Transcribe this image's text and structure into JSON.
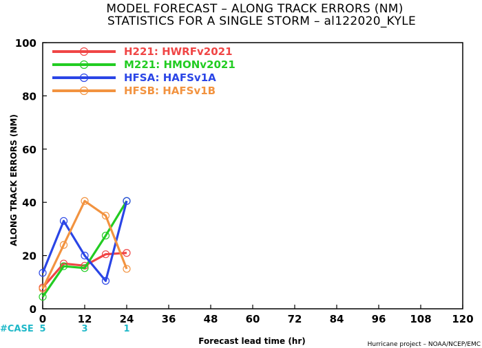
{
  "chart_data": {
    "type": "line",
    "title": "MODEL FORECAST – ALONG TRACK ERRORS (NM)",
    "subtitle": "STATISTICS FOR A SINGLE STORM – al122020_KYLE",
    "xlabel": "Forecast lead time (hr)",
    "ylabel": "ALONG TRACK ERRORS (NM)",
    "xlim": [
      0,
      120
    ],
    "ylim": [
      0,
      100
    ],
    "x_ticks": [
      0,
      12,
      24,
      36,
      48,
      60,
      72,
      84,
      96,
      108,
      120
    ],
    "y_ticks": [
      0,
      20,
      40,
      60,
      80,
      100
    ],
    "grid": false,
    "legend_position": "top-left",
    "series": [
      {
        "name": "H221: HWRFv2021",
        "color": "#f04545",
        "x": [
          0,
          6,
          12,
          18,
          24
        ],
        "y": [
          8,
          17,
          16.2,
          20.5,
          21
        ]
      },
      {
        "name": "M221: HMONv2021",
        "color": "#22cc22",
        "x": [
          0,
          6,
          12,
          18,
          24
        ],
        "y": [
          4.5,
          16,
          15.3,
          27.5,
          40.5
        ]
      },
      {
        "name": "HFSA: HAFSv1A",
        "color": "#2a45e6",
        "x": [
          0,
          6,
          12,
          18,
          24
        ],
        "y": [
          13.5,
          33,
          20,
          10.5,
          40.5
        ]
      },
      {
        "name": "HFSB: HAFSv1B",
        "color": "#f29340",
        "x": [
          0,
          6,
          12,
          18,
          24
        ],
        "y": [
          7.5,
          24,
          40.5,
          35,
          15
        ]
      }
    ],
    "case_label": "#CASE",
    "cases": [
      {
        "x": 0,
        "count": "5"
      },
      {
        "x": 12,
        "count": "3"
      },
      {
        "x": 24,
        "count": "1"
      }
    ],
    "credit": "Hurricane project – NOAA/NCEP/EMC"
  }
}
